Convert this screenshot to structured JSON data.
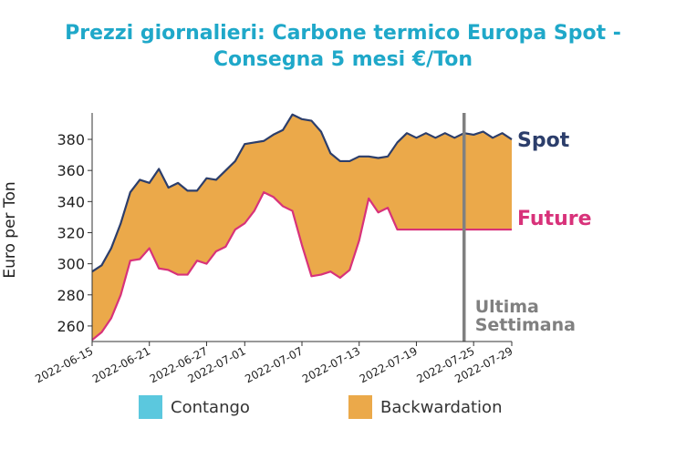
{
  "title_line1": "Prezzi giornalieri: Carbone termico Europa Spot -",
  "title_line2": "Consegna 5 mesi €/Ton",
  "chart_data": {
    "type": "area",
    "title": "Prezzi giornalieri: Carbone termico Europa Spot - Consegna 5 mesi €/Ton",
    "xlabel": "",
    "ylabel": "Euro per Ton",
    "x_start": "2022-06-15",
    "x_end": "2022-07-29",
    "x_ticks": [
      "2022-06-15",
      "2022-06-21",
      "2022-06-27",
      "2022-07-01",
      "2022-07-07",
      "2022-07-13",
      "2022-07-19",
      "2022-07-25",
      "2022-07-29"
    ],
    "ylim": [
      250,
      397
    ],
    "y_ticks": [
      260,
      280,
      300,
      320,
      340,
      360,
      380
    ],
    "grid": false,
    "series": [
      {
        "name": "Spot",
        "color": "#2c3e6b",
        "dates": [
          "2022-06-15",
          "2022-06-16",
          "2022-06-17",
          "2022-06-18",
          "2022-06-19",
          "2022-06-20",
          "2022-06-21",
          "2022-06-22",
          "2022-06-23",
          "2022-06-24",
          "2022-06-25",
          "2022-06-26",
          "2022-06-27",
          "2022-06-28",
          "2022-06-29",
          "2022-06-30",
          "2022-07-01",
          "2022-07-02",
          "2022-07-03",
          "2022-07-04",
          "2022-07-05",
          "2022-07-06",
          "2022-07-07",
          "2022-07-08",
          "2022-07-09",
          "2022-07-10",
          "2022-07-11",
          "2022-07-12",
          "2022-07-13",
          "2022-07-14",
          "2022-07-15",
          "2022-07-16",
          "2022-07-17",
          "2022-07-18",
          "2022-07-19",
          "2022-07-20",
          "2022-07-21",
          "2022-07-22",
          "2022-07-23",
          "2022-07-24",
          "2022-07-25",
          "2022-07-26",
          "2022-07-27",
          "2022-07-28",
          "2022-07-29"
        ],
        "values": [
          295,
          299,
          310,
          326,
          346,
          354,
          352,
          361,
          349,
          352,
          347,
          347,
          355,
          354,
          360,
          366,
          377,
          378,
          379,
          383,
          386,
          396,
          393,
          392,
          385,
          371,
          366,
          366,
          369,
          369,
          368,
          369,
          378,
          384,
          381,
          384,
          381,
          384,
          381,
          384,
          383,
          385,
          381,
          384,
          380
        ]
      },
      {
        "name": "Future",
        "color": "#d8327a",
        "dates": [
          "2022-06-15",
          "2022-06-16",
          "2022-06-17",
          "2022-06-18",
          "2022-06-19",
          "2022-06-20",
          "2022-06-21",
          "2022-06-22",
          "2022-06-23",
          "2022-06-24",
          "2022-06-25",
          "2022-06-26",
          "2022-06-27",
          "2022-06-28",
          "2022-06-29",
          "2022-06-30",
          "2022-07-01",
          "2022-07-02",
          "2022-07-03",
          "2022-07-04",
          "2022-07-05",
          "2022-07-06",
          "2022-07-07",
          "2022-07-08",
          "2022-07-09",
          "2022-07-10",
          "2022-07-11",
          "2022-07-12",
          "2022-07-13",
          "2022-07-14",
          "2022-07-15",
          "2022-07-16",
          "2022-07-17",
          "2022-07-18",
          "2022-07-19",
          "2022-07-20",
          "2022-07-21",
          "2022-07-22",
          "2022-07-23",
          "2022-07-24",
          "2022-07-25",
          "2022-07-26",
          "2022-07-27",
          "2022-07-28",
          "2022-07-29"
        ],
        "values": [
          251,
          256,
          265,
          280,
          302,
          303,
          310,
          297,
          296,
          293,
          293,
          302,
          300,
          308,
          311,
          322,
          326,
          334,
          346,
          343,
          337,
          334,
          312,
          292,
          293,
          295,
          291,
          296,
          315,
          342,
          333,
          336,
          322,
          322,
          322,
          322,
          322,
          322,
          322,
          322,
          322,
          322,
          322,
          322,
          322
        ]
      }
    ],
    "fill_between": {
      "Backwardation": {
        "color": "#eba94a",
        "label": "Backwardation"
      },
      "Contango": {
        "color": "#5bc8de",
        "label": "Contango"
      }
    },
    "vertical_line": {
      "date": "2022-07-24",
      "color": "#808080",
      "label_line1": "Ultima",
      "label_line2": "Settimana"
    },
    "legend": [
      {
        "label": "Contango",
        "color": "#5bc8de"
      },
      {
        "label": "Backwardation",
        "color": "#eba94a"
      }
    ],
    "legend_position": "bottom-center"
  }
}
